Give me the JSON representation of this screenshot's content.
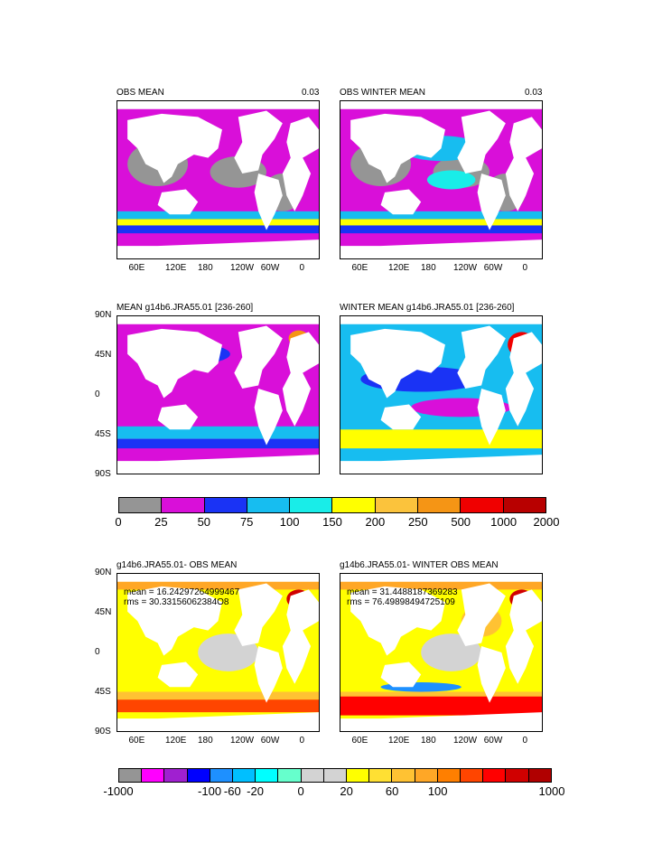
{
  "chart_data": {
    "type": "heatmap",
    "lon_ticks": [
      "60E",
      "120E",
      "180",
      "120W",
      "60W",
      "0"
    ],
    "lat_ticks": [
      "90N",
      "45N",
      "0",
      "45S",
      "90S"
    ],
    "panels": [
      {
        "id": "p1",
        "title": "OBS MEAN",
        "right_label": "0.03",
        "colorbar": "cb1",
        "x_labels": true,
        "y_labels": false,
        "mean": null,
        "rms": null
      },
      {
        "id": "p2",
        "title": "OBS WINTER MEAN",
        "right_label": "0.03",
        "colorbar": "cb1",
        "x_labels": true,
        "y_labels": false,
        "mean": null,
        "rms": null
      },
      {
        "id": "p3",
        "title": "MEAN g14b6.JRA55.01 [236-260]",
        "right_label": "",
        "colorbar": "cb1",
        "x_labels": false,
        "y_labels": true,
        "mean": null,
        "rms": null
      },
      {
        "id": "p4",
        "title": "WINTER MEAN g14b6.JRA55.01 [236-260]",
        "right_label": "",
        "colorbar": "cb1",
        "x_labels": false,
        "y_labels": false,
        "mean": null,
        "rms": null
      },
      {
        "id": "p5",
        "title": "g14b6.JRA55.01- OBS MEAN",
        "right_label": "",
        "colorbar": "cb2",
        "x_labels": true,
        "y_labels": true,
        "mean": "mean = 16.24297264999467",
        "rms": "rms = 30.33156062384O8"
      },
      {
        "id": "p6",
        "title": "g14b6.JRA55.01- WINTER OBS MEAN",
        "right_label": "",
        "colorbar": "cb2",
        "x_labels": true,
        "y_labels": false,
        "mean": "mean = 31.4488187369283",
        "rms": "rms = 76.49898494725109"
      }
    ],
    "colorbars": {
      "cb1": {
        "colors": [
          "#959595",
          "#d90fd9",
          "#1a33f5",
          "#17bdf0",
          "#19ede8",
          "#ffff00",
          "#fbc33c",
          "#f59515",
          "#f00000",
          "#b80000"
        ],
        "labels": [
          "0",
          "25",
          "50",
          "75",
          "100",
          "150",
          "200",
          "250",
          "500",
          "1000",
          "2000"
        ]
      },
      "cb2": {
        "colors": [
          "#959595",
          "#ff00ff",
          "#a020d0",
          "#0000ff",
          "#1e90ff",
          "#00bfff",
          "#00ffff",
          "#66ffcc",
          "#d3d3d3",
          "#d3d3d3",
          "#ffff00",
          "#ffe033",
          "#ffc233",
          "#ffa726",
          "#ff7f00",
          "#ff4500",
          "#ff0000",
          "#d00000",
          "#b00000"
        ],
        "labels": [
          "-1000",
          "",
          "-100",
          "-60",
          "-20",
          "0",
          "20",
          "60",
          "100",
          "1000"
        ],
        "label_box_index": [
          0,
          2,
          3,
          4,
          5,
          7,
          9,
          11,
          13,
          15,
          19
        ]
      }
    }
  }
}
